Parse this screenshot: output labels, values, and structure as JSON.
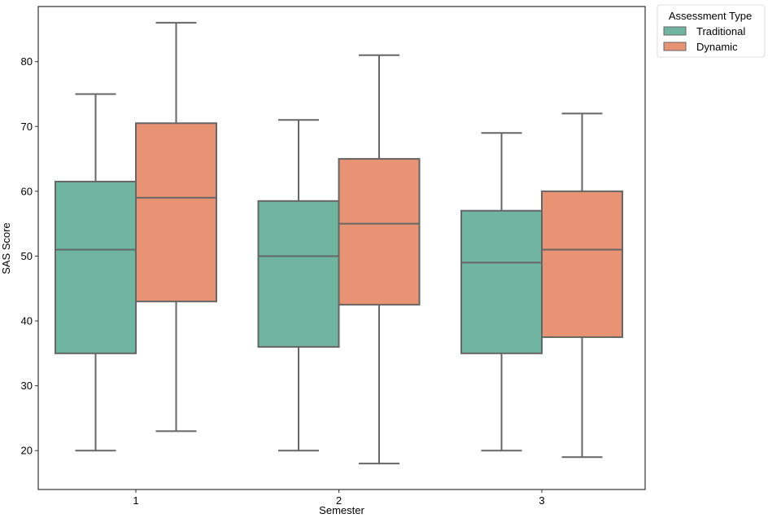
{
  "chart_data": {
    "type": "box",
    "title": "",
    "xlabel": "Semester",
    "ylabel": "SAS Score",
    "categories": [
      "1",
      "2",
      "3"
    ],
    "yticks": [
      20,
      30,
      40,
      50,
      60,
      70,
      80
    ],
    "ylim": [
      14,
      88.5
    ],
    "legend": {
      "title": "Assessment Type",
      "placement": "outside-top-right"
    },
    "series": [
      {
        "name": "Traditional",
        "color": "#70b5a0",
        "boxes": [
          {
            "min": 20,
            "q1": 35,
            "median": 51,
            "q3": 61.5,
            "max": 75
          },
          {
            "min": 20,
            "q1": 36,
            "median": 50,
            "q3": 58.5,
            "max": 71
          },
          {
            "min": 20,
            "q1": 35,
            "median": 49,
            "q3": 57,
            "max": 69
          }
        ]
      },
      {
        "name": "Dynamic",
        "color": "#e89373",
        "boxes": [
          {
            "min": 23,
            "q1": 43,
            "median": 59,
            "q3": 70.5,
            "max": 86
          },
          {
            "min": 18,
            "q1": 42.5,
            "median": 55,
            "q3": 65,
            "max": 81
          },
          {
            "min": 19,
            "q1": 37.5,
            "median": 51,
            "q3": 60,
            "max": 72
          }
        ]
      }
    ]
  }
}
